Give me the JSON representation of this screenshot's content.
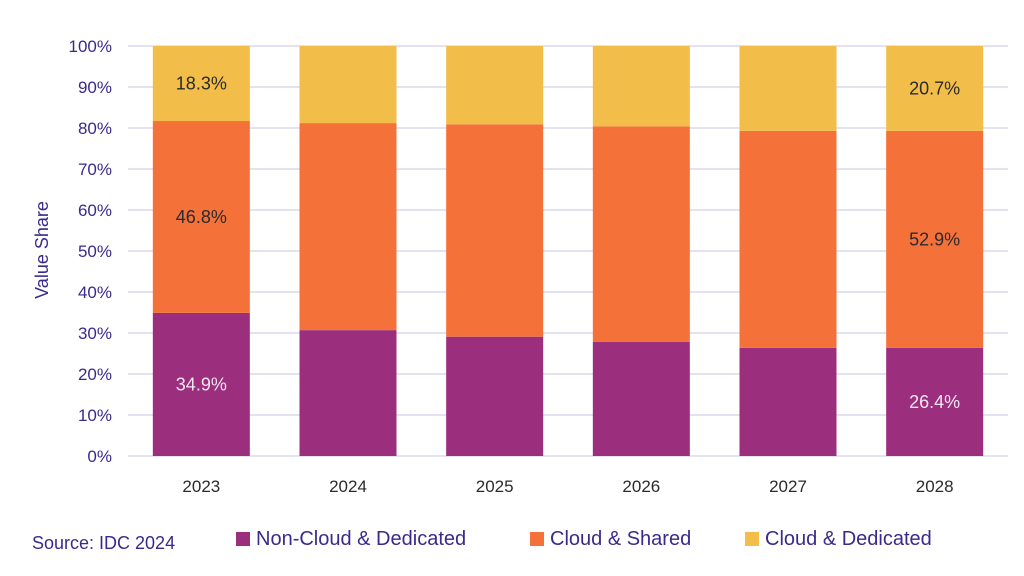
{
  "source": "Source: IDC 2024",
  "colors": {
    "series": [
      "#9b2f7e",
      "#f4713a",
      "#f2bd49"
    ],
    "gridline": "#c8c3e6",
    "tick_text": "#3a2a8c",
    "axis_text": "#3a2a8c"
  },
  "chart_data": {
    "type": "bar",
    "stacked": true,
    "categories": [
      "2023",
      "2024",
      "2025",
      "2026",
      "2027",
      "2028"
    ],
    "ylabel": "Value  Share",
    "xlabel": "",
    "ylim": [
      0,
      100
    ],
    "yticks": [
      "0%",
      "10%",
      "20%",
      "30%",
      "40%",
      "50%",
      "60%",
      "70%",
      "80%",
      "90%",
      "100%"
    ],
    "grid": true,
    "legend_position": "bottom",
    "series": [
      {
        "name": "Non-Cloud & Dedicated",
        "values": [
          34.9,
          30.7,
          29.1,
          27.8,
          26.4,
          26.4
        ]
      },
      {
        "name": "Cloud & Shared",
        "values": [
          46.8,
          50.5,
          51.8,
          52.6,
          52.9,
          52.9
        ]
      },
      {
        "name": "Cloud & Dedicated",
        "values": [
          18.3,
          18.8,
          19.1,
          19.6,
          20.7,
          20.7
        ]
      }
    ],
    "data_labels": [
      {
        "series": 0,
        "category": 0,
        "text": "34.9%",
        "color": "#f3e6f0"
      },
      {
        "series": 1,
        "category": 0,
        "text": "46.8%",
        "color": "#2b2b2b"
      },
      {
        "series": 2,
        "category": 0,
        "text": "18.3%",
        "color": "#2b2b2b"
      },
      {
        "series": 0,
        "category": 5,
        "text": "26.4%",
        "color": "#f3e6f0"
      },
      {
        "series": 1,
        "category": 5,
        "text": "52.9%",
        "color": "#2b2b2b"
      },
      {
        "series": 2,
        "category": 5,
        "text": "20.7%",
        "color": "#2b2b2b"
      }
    ]
  }
}
